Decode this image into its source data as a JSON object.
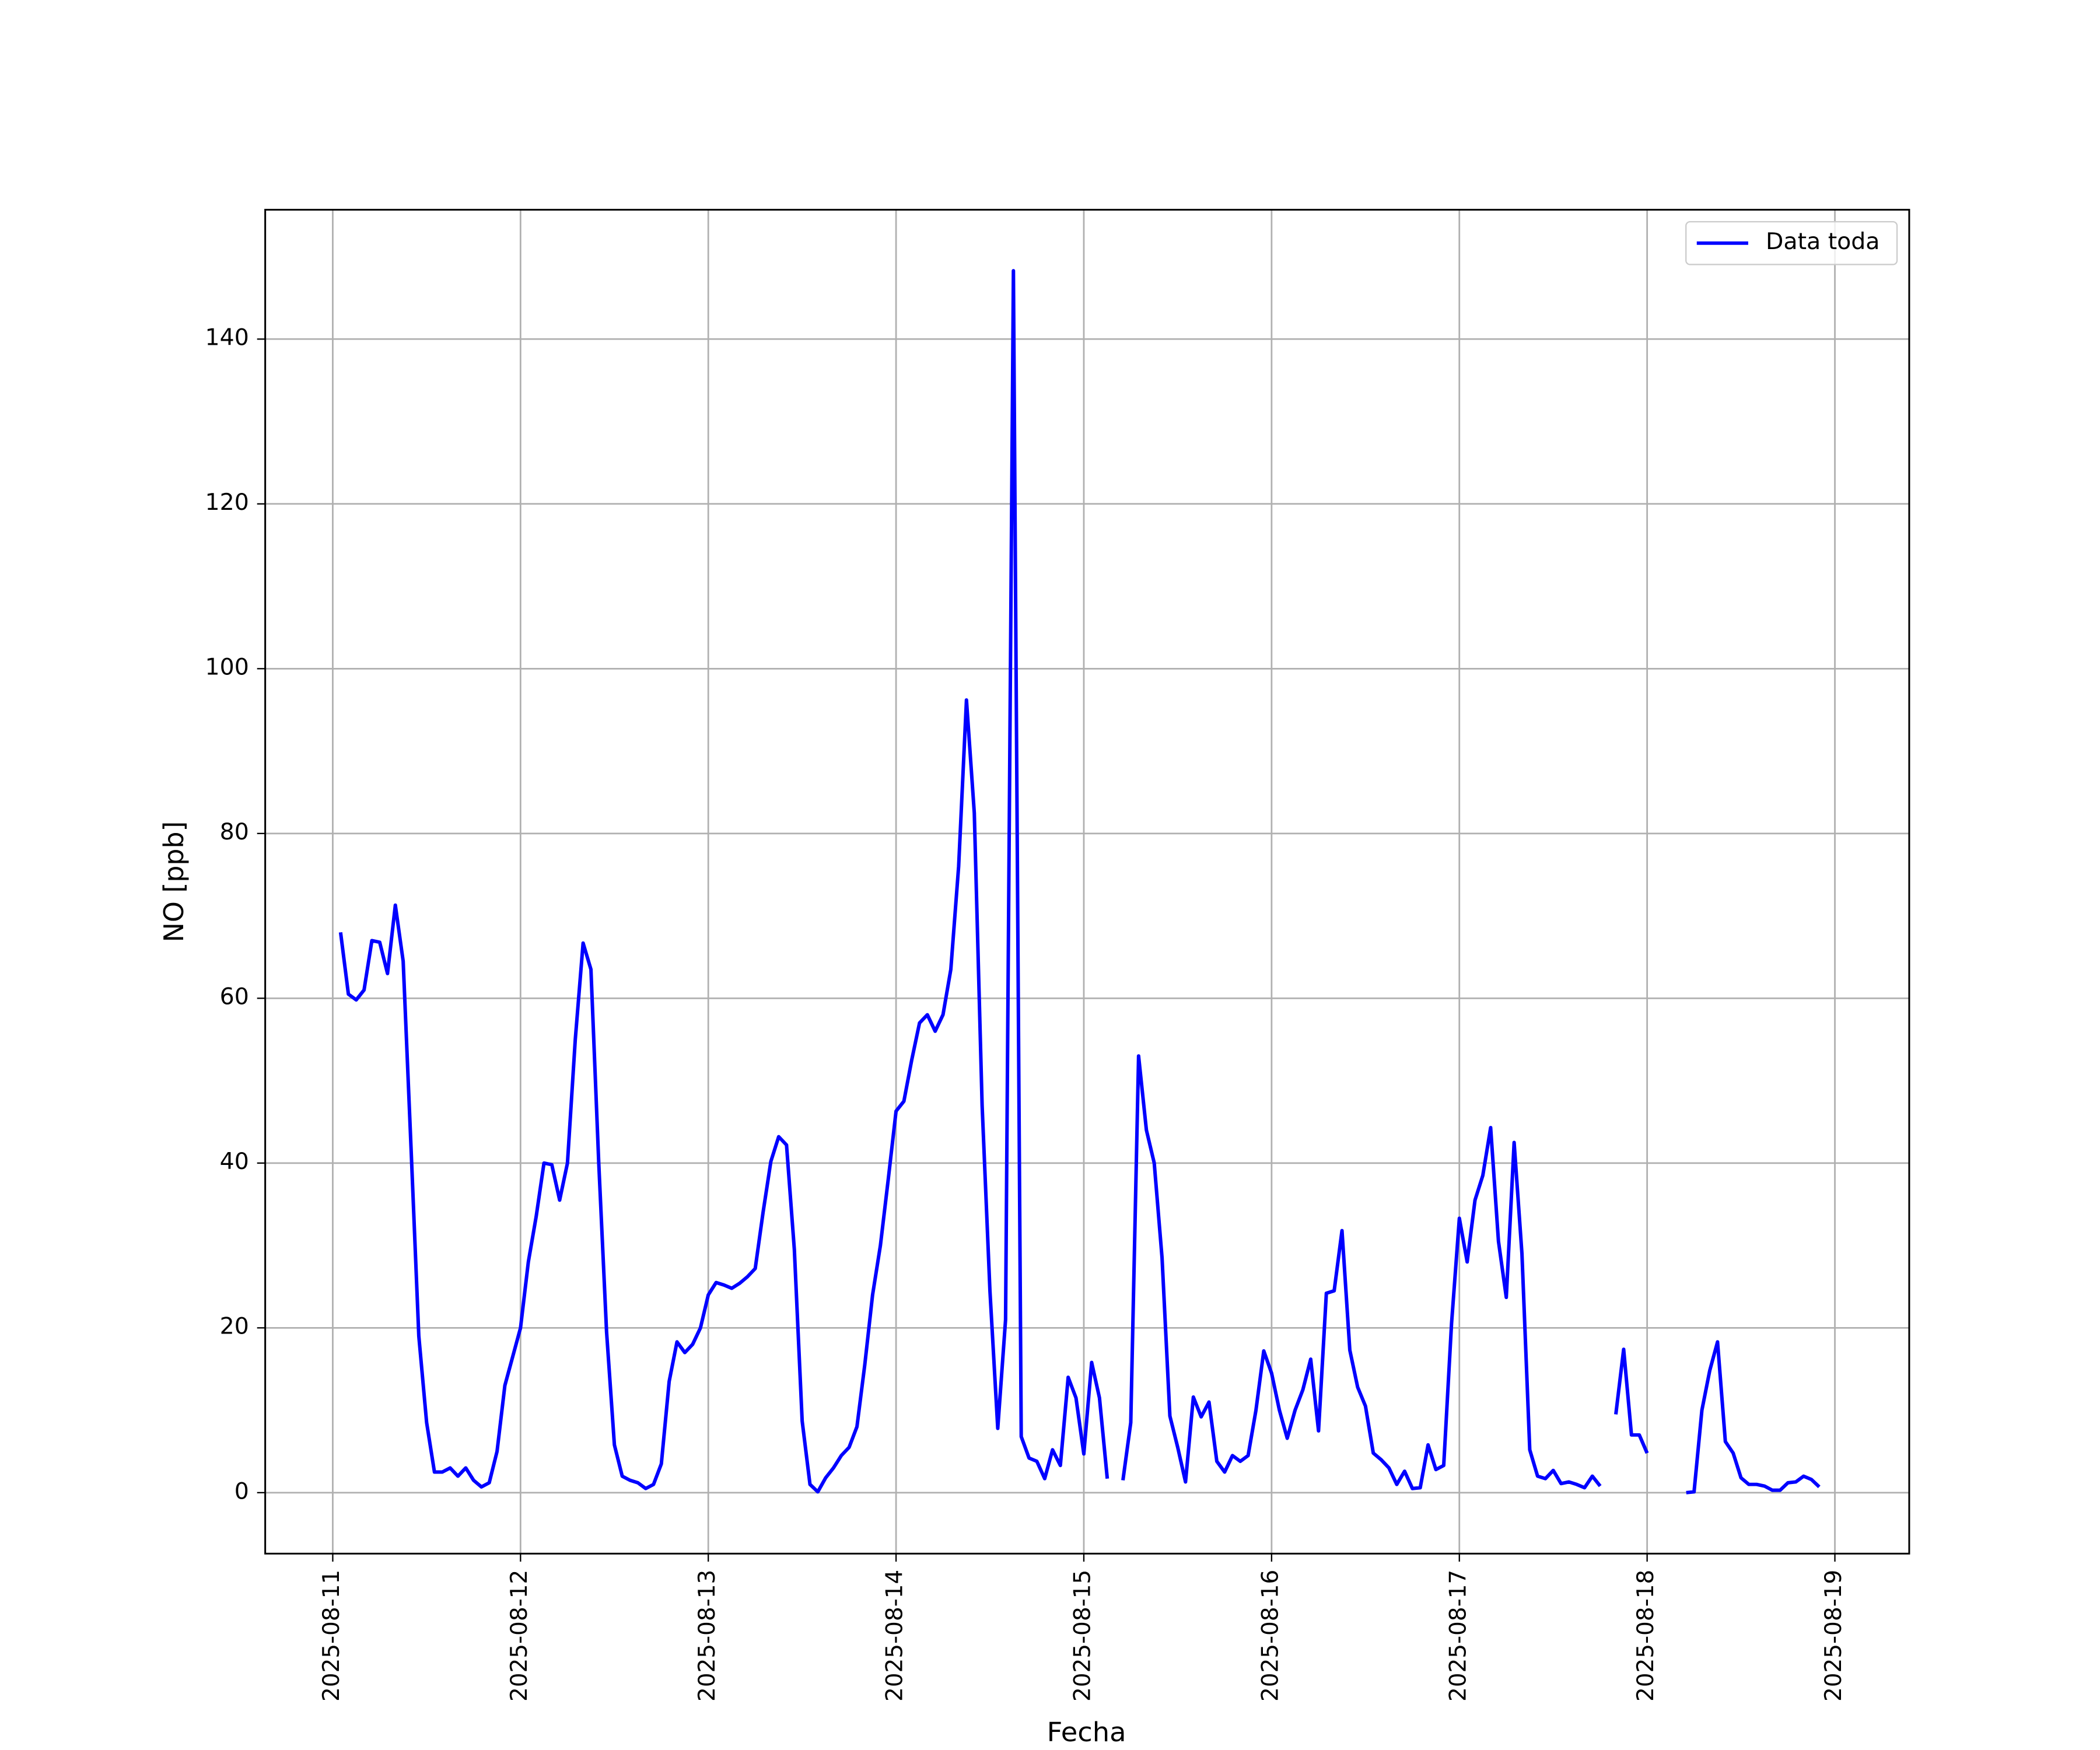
{
  "chart_data": {
    "type": "line",
    "xlabel": "Fecha",
    "ylabel": "NO [ppb]",
    "x": [
      "2025-08-11 01:00",
      "2025-08-11 02:00",
      "2025-08-11 03:00",
      "2025-08-11 04:00",
      "2025-08-11 05:00",
      "2025-08-11 06:00",
      "2025-08-11 07:00",
      "2025-08-11 08:00",
      "2025-08-11 09:00",
      "2025-08-11 10:00",
      "2025-08-11 11:00",
      "2025-08-11 12:00",
      "2025-08-11 13:00",
      "2025-08-11 14:00",
      "2025-08-11 15:00",
      "2025-08-11 16:00",
      "2025-08-11 17:00",
      "2025-08-11 18:00",
      "2025-08-11 19:00",
      "2025-08-11 20:00",
      "2025-08-11 21:00",
      "2025-08-11 22:00",
      "2025-08-11 23:00",
      "2025-08-12 00:00",
      "2025-08-12 01:00",
      "2025-08-12 02:00",
      "2025-08-12 03:00",
      "2025-08-12 04:00",
      "2025-08-12 05:00",
      "2025-08-12 06:00",
      "2025-08-12 07:00",
      "2025-08-12 08:00",
      "2025-08-12 09:00",
      "2025-08-12 10:00",
      "2025-08-12 11:00",
      "2025-08-12 12:00",
      "2025-08-12 13:00",
      "2025-08-12 14:00",
      "2025-08-12 15:00",
      "2025-08-12 16:00",
      "2025-08-12 17:00",
      "2025-08-12 18:00",
      "2025-08-12 19:00",
      "2025-08-12 20:00",
      "2025-08-12 21:00",
      "2025-08-12 22:00",
      "2025-08-12 23:00",
      "2025-08-13 00:00",
      "2025-08-13 01:00",
      "2025-08-13 02:00",
      "2025-08-13 03:00",
      "2025-08-13 04:00",
      "2025-08-13 05:00",
      "2025-08-13 06:00",
      "2025-08-13 07:00",
      "2025-08-13 08:00",
      "2025-08-13 09:00",
      "2025-08-13 10:00",
      "2025-08-13 11:00",
      "2025-08-13 12:00",
      "2025-08-13 13:00",
      "2025-08-13 14:00",
      "2025-08-13 15:00",
      "2025-08-13 16:00",
      "2025-08-13 17:00",
      "2025-08-13 18:00",
      "2025-08-13 19:00",
      "2025-08-13 20:00",
      "2025-08-13 21:00",
      "2025-08-13 22:00",
      "2025-08-13 23:00",
      "2025-08-14 00:00",
      "2025-08-14 01:00",
      "2025-08-14 02:00",
      "2025-08-14 03:00",
      "2025-08-14 04:00",
      "2025-08-14 05:00",
      "2025-08-14 06:00",
      "2025-08-14 07:00",
      "2025-08-14 08:00",
      "2025-08-14 09:00",
      "2025-08-14 10:00",
      "2025-08-14 11:00",
      "2025-08-14 12:00",
      "2025-08-14 13:00",
      "2025-08-14 14:00",
      "2025-08-14 15:00",
      "2025-08-14 16:00",
      "2025-08-14 17:00",
      "2025-08-14 18:00",
      "2025-08-14 19:00",
      "2025-08-14 20:00",
      "2025-08-14 21:00",
      "2025-08-14 22:00",
      "2025-08-14 23:00",
      "2025-08-15 00:00",
      "2025-08-15 01:00",
      "2025-08-15 02:00",
      "2025-08-15 03:00",
      "2025-08-15 04:00",
      "2025-08-15 05:00",
      "2025-08-15 06:00",
      "2025-08-15 07:00",
      "2025-08-15 08:00",
      "2025-08-15 09:00",
      "2025-08-15 10:00",
      "2025-08-15 11:00",
      "2025-08-15 12:00",
      "2025-08-15 13:00",
      "2025-08-15 14:00",
      "2025-08-15 15:00",
      "2025-08-15 16:00",
      "2025-08-15 17:00",
      "2025-08-15 18:00",
      "2025-08-15 19:00",
      "2025-08-15 20:00",
      "2025-08-15 21:00",
      "2025-08-15 22:00",
      "2025-08-15 23:00",
      "2025-08-16 00:00",
      "2025-08-16 01:00",
      "2025-08-16 02:00",
      "2025-08-16 03:00",
      "2025-08-16 04:00",
      "2025-08-16 05:00",
      "2025-08-16 06:00",
      "2025-08-16 07:00",
      "2025-08-16 08:00",
      "2025-08-16 09:00",
      "2025-08-16 10:00",
      "2025-08-16 11:00",
      "2025-08-16 12:00",
      "2025-08-16 13:00",
      "2025-08-16 14:00",
      "2025-08-16 15:00",
      "2025-08-16 16:00",
      "2025-08-16 17:00",
      "2025-08-16 18:00",
      "2025-08-16 19:00",
      "2025-08-16 20:00",
      "2025-08-16 21:00",
      "2025-08-16 22:00",
      "2025-08-16 23:00",
      "2025-08-17 00:00",
      "2025-08-17 01:00",
      "2025-08-17 02:00",
      "2025-08-17 03:00",
      "2025-08-17 04:00",
      "2025-08-17 05:00",
      "2025-08-17 06:00",
      "2025-08-17 07:00",
      "2025-08-17 08:00",
      "2025-08-17 09:00",
      "2025-08-17 10:00",
      "2025-08-17 11:00",
      "2025-08-17 12:00",
      "2025-08-17 13:00",
      "2025-08-17 14:00",
      "2025-08-17 15:00",
      "2025-08-17 16:00",
      "2025-08-17 17:00",
      "2025-08-17 18:00",
      "2025-08-17 19:00",
      "2025-08-17 20:00",
      "2025-08-17 21:00",
      "2025-08-17 22:00",
      "2025-08-17 23:00",
      "2025-08-18 00:00",
      "2025-08-18 01:00",
      "2025-08-18 02:00",
      "2025-08-18 03:00",
      "2025-08-18 04:00",
      "2025-08-18 05:00",
      "2025-08-18 06:00",
      "2025-08-18 07:00",
      "2025-08-18 08:00",
      "2025-08-18 09:00",
      "2025-08-18 10:00",
      "2025-08-18 11:00",
      "2025-08-18 12:00",
      "2025-08-18 13:00",
      "2025-08-18 14:00",
      "2025-08-18 15:00",
      "2025-08-18 16:00",
      "2025-08-18 17:00",
      "2025-08-18 18:00",
      "2025-08-18 19:00",
      "2025-08-18 20:00",
      "2025-08-18 21:00",
      "2025-08-18 22:00"
    ],
    "series": [
      {
        "name": "Data toda",
        "color": "#0000ff",
        "values": [
          68,
          60.5,
          59.8,
          61,
          67,
          66.8,
          63,
          71.3,
          64.5,
          42,
          19,
          8.5,
          2.5,
          2.5,
          3,
          2,
          3,
          1.5,
          0.7,
          1.2,
          5,
          13,
          16.5,
          20,
          28,
          33.5,
          40,
          39.8,
          35.5,
          40,
          55,
          66.7,
          63.5,
          40,
          19.5,
          5.8,
          2,
          1.5,
          1.2,
          0.5,
          1,
          3.5,
          13.5,
          18.3,
          17,
          18,
          20,
          24,
          25.5,
          25.2,
          24.8,
          25.4,
          26.2,
          27.2,
          34,
          40.2,
          43.2,
          42.2,
          29.5,
          8.7,
          1,
          0.1,
          1.8,
          3,
          4.5,
          5.5,
          8,
          15.5,
          24,
          30,
          38,
          46.3,
          47.5,
          52.5,
          57,
          58,
          56,
          58,
          63.5,
          76,
          96.2,
          82.5,
          47,
          24.5,
          7.8,
          21,
          148.3,
          6.8,
          4.2,
          3.8,
          1.7,
          5.2,
          3.3,
          14,
          11.5,
          4.7,
          15.8,
          11.5,
          1.7,
          null,
          1.5,
          8.5,
          53,
          44,
          40,
          28.5,
          9.3,
          5.5,
          1.3,
          11.6,
          9.2,
          11,
          3.8,
          2.5,
          4.5,
          3.8,
          4.5,
          10,
          17.2,
          14.5,
          10,
          6.6,
          10,
          12.5,
          16.2,
          7.5,
          24.2,
          24.5,
          31.8,
          17.3,
          12.8,
          10.5,
          4.8,
          4,
          3,
          1,
          2.6,
          0.5,
          0.6,
          5.8,
          2.8,
          3.3,
          20.5,
          33.3,
          28,
          35.5,
          38.5,
          44.3,
          30.5,
          23.7,
          42.5,
          29,
          5.2,
          2,
          1.7,
          2.7,
          1.1,
          1.3,
          1,
          0.6,
          2,
          0.8,
          null,
          9.5,
          17.4,
          7,
          7,
          4.8,
          null,
          null,
          null,
          null,
          0,
          0.1,
          10,
          14.8,
          18.3,
          6.2,
          4.8,
          1.8,
          1,
          1,
          0.8,
          0.3,
          0.3,
          1.2,
          1.3,
          2,
          1.6,
          0.7
        ]
      }
    ],
    "xlim": [
      "2025-08-10 15:22",
      "2025-08-19 09:30"
    ],
    "xticks": [
      "2025-08-11",
      "2025-08-12",
      "2025-08-13",
      "2025-08-14",
      "2025-08-15",
      "2025-08-16",
      "2025-08-17",
      "2025-08-18",
      "2025-08-19"
    ],
    "ylim": [
      -7.4,
      155.7
    ],
    "yticks": [
      0,
      20,
      40,
      60,
      80,
      100,
      120,
      140
    ],
    "grid": true,
    "legend": "upper right"
  }
}
